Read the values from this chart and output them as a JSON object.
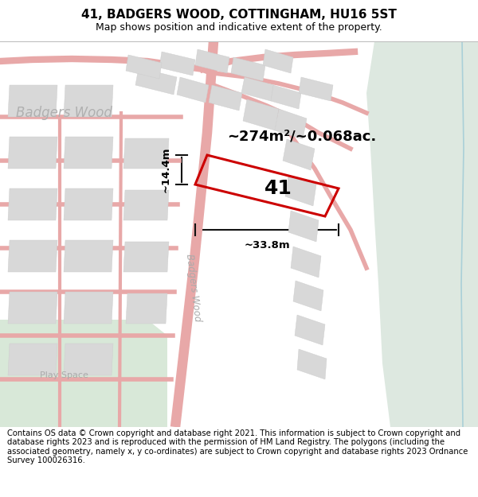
{
  "title": "41, BADGERS WOOD, COTTINGHAM, HU16 5ST",
  "subtitle": "Map shows position and indicative extent of the property.",
  "footer": "Contains OS data © Crown copyright and database right 2021. This information is subject to Crown copyright and database rights 2023 and is reproduced with the permission of HM Land Registry. The polygons (including the associated geometry, namely x, y co-ordinates) are subject to Crown copyright and database rights 2023 Ordnance Survey 100026316.",
  "map_bg": "#f2f2f2",
  "right_bg_color": "#dde8e0",
  "road_color": "#e8a8a8",
  "road_outline": "#e0a0a0",
  "building_fill": "#d8d8d8",
  "building_edge": "#cccccc",
  "plot_color": "#cc0000",
  "plot_label": "41",
  "area_label": "~274m²/~0.068ac.",
  "width_label": "~33.8m",
  "height_label": "~14.4m",
  "road_text": "Badgers Wood",
  "area_text": "Badgers Wood",
  "play_text": "Play Space",
  "green_left_color": "#d8e8d8",
  "green_right_color": "#dde8dd",
  "water_color": "#aad0d8",
  "dim_color": "#111111",
  "title_fontsize": 11,
  "subtitle_fontsize": 9,
  "footer_fontsize": 7.2,
  "label_fontsize": 18,
  "area_fontsize": 13,
  "dim_fontsize": 9.5
}
